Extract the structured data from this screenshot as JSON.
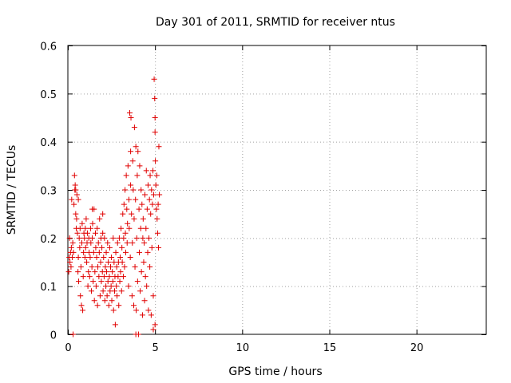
{
  "chart_data": {
    "type": "scatter",
    "title": "Day 301 of 2011, SRMTID for receiver ntus",
    "xlabel": "GPS time / hours",
    "ylabel": "SRMTID / TECUs",
    "xlim": [
      0,
      24
    ],
    "ylim": [
      0,
      0.6
    ],
    "xticks": [
      0,
      5,
      10,
      15,
      20
    ],
    "yticks": [
      0,
      0.1,
      0.2,
      0.3,
      0.4,
      0.5,
      0.6
    ],
    "xtick_labels": [
      "0",
      "5",
      "10",
      "15",
      "20"
    ],
    "ytick_labels": [
      "0",
      "0.1",
      "0.2",
      "0.3",
      "0.4",
      "0.5",
      "0.6"
    ],
    "grid": true,
    "marker": "plus",
    "color": "#e00000",
    "series": [
      {
        "name": "SRMTID",
        "points": [
          [
            0.05,
            0.13
          ],
          [
            0.08,
            0.16
          ],
          [
            0.1,
            0.2
          ],
          [
            0.12,
            0.15
          ],
          [
            0.15,
            0.17
          ],
          [
            0.18,
            0.14
          ],
          [
            0.2,
            0.18
          ],
          [
            0.22,
            0.28
          ],
          [
            0.25,
            0.16
          ],
          [
            0.28,
            0.19
          ],
          [
            0.3,
            0.0
          ],
          [
            0.32,
            0.17
          ],
          [
            0.35,
            0.27
          ],
          [
            0.38,
            0.33
          ],
          [
            0.4,
            0.3
          ],
          [
            0.42,
            0.31
          ],
          [
            0.45,
            0.25
          ],
          [
            0.48,
            0.22
          ],
          [
            0.5,
            0.24
          ],
          [
            0.52,
            0.29
          ],
          [
            0.55,
            0.21
          ],
          [
            0.58,
            0.13
          ],
          [
            0.6,
            0.16
          ],
          [
            0.62,
            0.11
          ],
          [
            0.65,
            0.2
          ],
          [
            0.68,
            0.18
          ],
          [
            0.7,
            0.22
          ],
          [
            0.72,
            0.08
          ],
          [
            0.75,
            0.14
          ],
          [
            0.78,
            0.06
          ],
          [
            0.8,
            0.19
          ],
          [
            0.82,
            0.23
          ],
          [
            0.85,
            0.05
          ],
          [
            0.88,
            0.12
          ],
          [
            0.9,
            0.17
          ],
          [
            0.92,
            0.21
          ],
          [
            0.95,
            0.2
          ],
          [
            0.98,
            0.16
          ],
          [
            1.0,
            0.22
          ],
          [
            1.02,
            0.18
          ],
          [
            1.05,
            0.24
          ],
          [
            1.08,
            0.15
          ],
          [
            1.1,
            0.19
          ],
          [
            1.12,
            0.21
          ],
          [
            1.15,
            0.1
          ],
          [
            1.18,
            0.13
          ],
          [
            1.2,
            0.2
          ],
          [
            1.22,
            0.17
          ],
          [
            1.25,
            0.12
          ],
          [
            1.28,
            0.16
          ],
          [
            1.3,
            0.22
          ],
          [
            1.32,
            0.19
          ],
          [
            1.35,
            0.09
          ],
          [
            1.38,
            0.14
          ],
          [
            1.4,
            0.2
          ],
          [
            1.42,
            0.23
          ],
          [
            1.45,
            0.11
          ],
          [
            1.48,
            0.17
          ],
          [
            1.5,
            0.26
          ],
          [
            1.52,
            0.07
          ],
          [
            1.55,
            0.13
          ],
          [
            1.58,
            0.21
          ],
          [
            1.6,
            0.18
          ],
          [
            1.62,
            0.1
          ],
          [
            1.65,
            0.16
          ],
          [
            1.68,
            0.22
          ],
          [
            1.7,
            0.06
          ],
          [
            1.72,
            0.14
          ],
          [
            1.75,
            0.19
          ],
          [
            1.78,
            0.12
          ],
          [
            1.8,
            0.17
          ],
          [
            1.82,
            0.24
          ],
          [
            1.85,
            0.08
          ],
          [
            1.88,
            0.15
          ],
          [
            1.9,
            0.2
          ],
          [
            1.92,
            0.11
          ],
          [
            1.95,
            0.18
          ],
          [
            1.98,
            0.13
          ],
          [
            2.0,
            0.21
          ],
          [
            2.02,
            0.09
          ],
          [
            2.05,
            0.16
          ],
          [
            2.08,
            0.12
          ],
          [
            2.1,
            0.2
          ],
          [
            2.12,
            0.07
          ],
          [
            2.15,
            0.14
          ],
          [
            2.18,
            0.1
          ],
          [
            2.2,
            0.17
          ],
          [
            2.22,
            0.13
          ],
          [
            2.25,
            0.08
          ],
          [
            2.28,
            0.19
          ],
          [
            2.3,
            0.11
          ],
          [
            2.32,
            0.15
          ],
          [
            2.35,
            0.06
          ],
          [
            2.38,
            0.12
          ],
          [
            2.4,
            0.18
          ],
          [
            2.42,
            0.09
          ],
          [
            2.45,
            0.14
          ],
          [
            2.48,
            0.1
          ],
          [
            2.5,
            0.16
          ],
          [
            2.52,
            0.07
          ],
          [
            2.55,
            0.13
          ],
          [
            2.58,
            0.11
          ],
          [
            2.6,
            0.2
          ],
          [
            2.62,
            0.05
          ],
          [
            2.65,
            0.15
          ],
          [
            2.68,
            0.09
          ],
          [
            2.7,
            0.12
          ],
          [
            2.72,
            0.02
          ],
          [
            2.75,
            0.17
          ],
          [
            2.78,
            0.1
          ],
          [
            2.8,
            0.14
          ],
          [
            2.82,
            0.08
          ],
          [
            2.85,
            0.19
          ],
          [
            2.88,
            0.12
          ],
          [
            2.9,
            0.15
          ],
          [
            2.92,
            0.06
          ],
          [
            2.95,
            0.2
          ],
          [
            2.98,
            0.11
          ],
          [
            3.0,
            0.16
          ],
          [
            3.02,
            0.13
          ],
          [
            3.05,
            0.22
          ],
          [
            3.08,
            0.09
          ],
          [
            3.1,
            0.18
          ],
          [
            3.12,
            0.15
          ],
          [
            3.15,
            0.25
          ],
          [
            3.18,
            0.12
          ],
          [
            3.2,
            0.2
          ],
          [
            3.22,
            0.27
          ],
          [
            3.25,
            0.14
          ],
          [
            3.28,
            0.3
          ],
          [
            3.3,
            0.21
          ],
          [
            3.32,
            0.17
          ],
          [
            3.35,
            0.33
          ],
          [
            3.38,
            0.26
          ],
          [
            3.4,
            0.19
          ],
          [
            3.42,
            0.23
          ],
          [
            3.45,
            0.35
          ],
          [
            3.48,
            0.1
          ],
          [
            3.5,
            0.28
          ],
          [
            3.52,
            0.22
          ],
          [
            3.55,
            0.46
          ],
          [
            3.58,
            0.16
          ],
          [
            3.6,
            0.31
          ],
          [
            3.62,
            0.45
          ],
          [
            3.65,
            0.25
          ],
          [
            3.68,
            0.08
          ],
          [
            3.7,
            0.19
          ],
          [
            3.72,
            0.36
          ],
          [
            3.75,
            0.3
          ],
          [
            3.78,
            0.06
          ],
          [
            3.8,
            0.24
          ],
          [
            3.82,
            0.43
          ],
          [
            3.85,
            0.14
          ],
          [
            3.88,
            0.28
          ],
          [
            3.9,
            0.39
          ],
          [
            3.92,
            0.05
          ],
          [
            3.95,
            0.2
          ],
          [
            3.98,
            0.33
          ],
          [
            4.0,
            0.11
          ],
          [
            4.02,
            0.38
          ],
          [
            4.05,
            0.0
          ],
          [
            4.08,
            0.26
          ],
          [
            4.1,
            0.17
          ],
          [
            4.12,
            0.35
          ],
          [
            4.15,
            0.09
          ],
          [
            4.18,
            0.22
          ],
          [
            4.2,
            0.3
          ],
          [
            4.22,
            0.13
          ],
          [
            4.25,
            0.27
          ],
          [
            4.28,
            0.04
          ],
          [
            4.3,
            0.2
          ],
          [
            4.32,
            0.24
          ],
          [
            4.35,
            0.15
          ],
          [
            4.38,
            0.19
          ],
          [
            4.4,
            0.07
          ],
          [
            4.42,
            0.29
          ],
          [
            4.45,
            0.12
          ],
          [
            4.48,
            0.22
          ],
          [
            4.5,
            0.34
          ],
          [
            4.52,
            0.1
          ],
          [
            4.55,
            0.26
          ],
          [
            4.58,
            0.17
          ],
          [
            4.6,
            0.31
          ],
          [
            4.62,
            0.05
          ],
          [
            4.65,
            0.2
          ],
          [
            4.68,
            0.28
          ],
          [
            4.7,
            0.14
          ],
          [
            4.72,
            0.33
          ],
          [
            4.75,
            0.25
          ],
          [
            4.78,
            0.04
          ],
          [
            4.8,
            0.3
          ],
          [
            4.82,
            0.18
          ],
          [
            4.85,
            0.27
          ],
          [
            4.88,
            0.34
          ],
          [
            4.9,
            0.08
          ],
          [
            4.92,
            0.29
          ],
          [
            4.95,
            0.53
          ],
          [
            4.98,
            0.49
          ],
          [
            5.0,
            0.45
          ],
          [
            5.02,
            0.36
          ],
          [
            5.05,
            0.31
          ],
          [
            5.08,
            0.26
          ],
          [
            5.1,
            0.33
          ],
          [
            5.12,
            0.24
          ],
          [
            5.15,
            0.21
          ],
          [
            5.18,
            0.27
          ],
          [
            5.2,
            0.18
          ],
          [
            5.22,
            0.39
          ],
          [
            5.25,
            0.29
          ],
          [
            5.0,
            0.42
          ],
          [
            3.6,
            0.38
          ],
          [
            2.0,
            0.25
          ],
          [
            1.4,
            0.26
          ],
          [
            0.6,
            0.28
          ],
          [
            0.45,
            0.3
          ],
          [
            4.9,
            0.01
          ],
          [
            5.0,
            0.02
          ],
          [
            3.9,
            0.0
          ]
        ]
      }
    ]
  }
}
